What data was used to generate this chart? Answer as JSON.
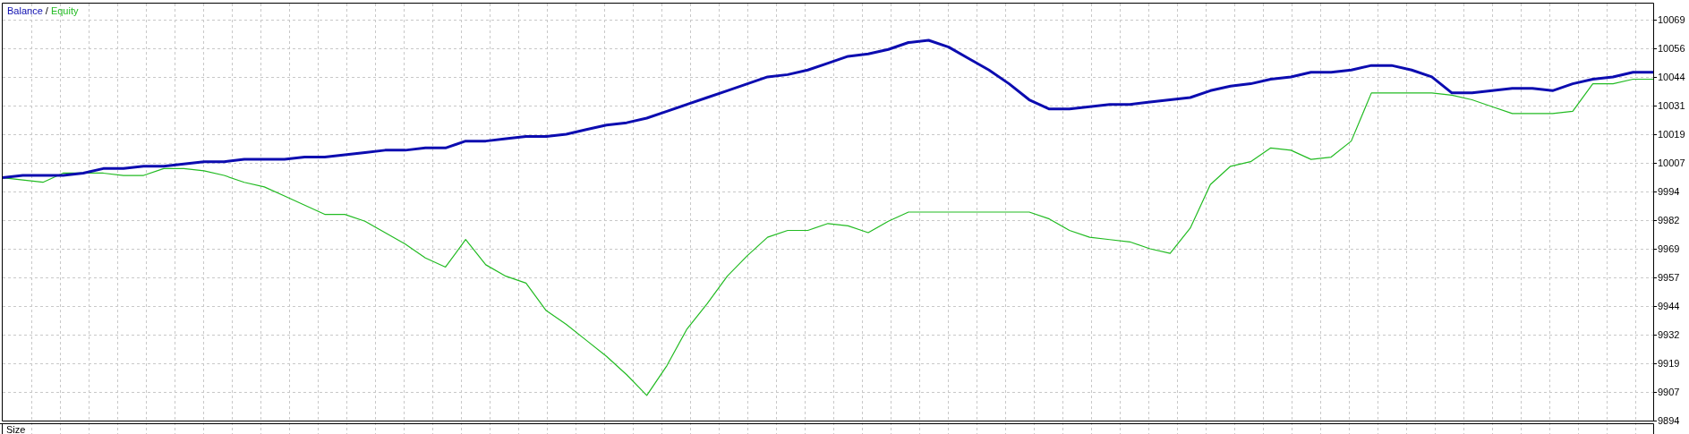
{
  "chart_data": {
    "type": "line",
    "categories": [
      null,
      null,
      null,
      null,
      null,
      null,
      null,
      null,
      null,
      null,
      null,
      null,
      null,
      null,
      null,
      null,
      null,
      null,
      null,
      null,
      null,
      null,
      null,
      null,
      null,
      null,
      null,
      null,
      null,
      null,
      null,
      null,
      null,
      null,
      null,
      null,
      null,
      null,
      null,
      null,
      null,
      null,
      null,
      null,
      null,
      null,
      null,
      null,
      null,
      null,
      null,
      null,
      null,
      null,
      null,
      null,
      null,
      null,
      null,
      null,
      null,
      null,
      null,
      null,
      null,
      null,
      null,
      null,
      null,
      null,
      null,
      null,
      null,
      null,
      null,
      null,
      null,
      null,
      null,
      null,
      null,
      null,
      null
    ],
    "series": [
      {
        "name": "Balance",
        "color": "#0c0cb0",
        "values": [
          10000,
          10001,
          10001,
          10001,
          10002,
          10004,
          10004,
          10005,
          10005,
          10006,
          10007,
          10007,
          10008,
          10008,
          10008,
          10009,
          10009,
          10010,
          10011,
          10012,
          10012,
          10013,
          10013,
          10016,
          10016,
          10017,
          10018,
          10018,
          10019,
          10021,
          10023,
          10024,
          10026,
          10029,
          10032,
          10035,
          10038,
          10041,
          10044,
          10045,
          10047,
          10050,
          10053,
          10054,
          10056,
          10059,
          10060,
          10057,
          10052,
          10047,
          10041,
          10034,
          10030,
          10030,
          10031,
          10032,
          10032,
          10033,
          10034,
          10035,
          10038,
          10040,
          10041,
          10043,
          10044,
          10046,
          10046,
          10047,
          10049,
          10049,
          10047,
          10044,
          10037,
          10037,
          10038,
          10039,
          10039,
          10038,
          10041,
          10043,
          10044,
          10046,
          10046
        ]
      },
      {
        "name": "Equity",
        "color": "#22bb22",
        "values": [
          10000,
          9999,
          9998,
          10002,
          10002,
          10002,
          10001,
          10001,
          10004,
          10004,
          10003,
          10001,
          9998,
          9996,
          9992,
          9988,
          9984,
          9984,
          9981,
          9976,
          9971,
          9965,
          9961,
          9973,
          9962,
          9957,
          9954,
          9942,
          9936,
          9929,
          9922,
          9914,
          9905,
          9918,
          9934,
          9945,
          9957,
          9966,
          9974,
          9977,
          9977,
          9980,
          9979,
          9976,
          9981,
          9985,
          9985,
          9985,
          9985,
          9985,
          9985,
          9985,
          9982,
          9977,
          9974,
          9973,
          9972,
          9969,
          9967,
          9978,
          9997,
          10005,
          10007,
          10013,
          10012,
          10008,
          10009,
          10016,
          10037,
          10037,
          10037,
          10037,
          10036,
          10034,
          10031,
          10028,
          10028,
          10028,
          10029,
          10041,
          10041,
          10043,
          10043
        ]
      }
    ],
    "ylim": [
      9894,
      10076
    ],
    "yticks": [
      9894,
      {
        "value": 9906.5,
        "label": "9907"
      },
      9919,
      {
        "value": 9931.5,
        "label": "9932"
      },
      9944,
      {
        "value": 9956.5,
        "label": "9957"
      },
      9969,
      {
        "value": 9981.5,
        "label": "9982"
      },
      9994,
      {
        "value": 10006.5,
        "label": "10007"
      },
      10019,
      {
        "value": 10031.5,
        "label": "10031"
      },
      10044,
      {
        "value": 10056.5,
        "label": "10056"
      },
      10069
    ],
    "grid": true,
    "legend": "top left",
    "tick_labels": "y",
    "annotations": [
      " / ",
      "Size"
    ]
  }
}
